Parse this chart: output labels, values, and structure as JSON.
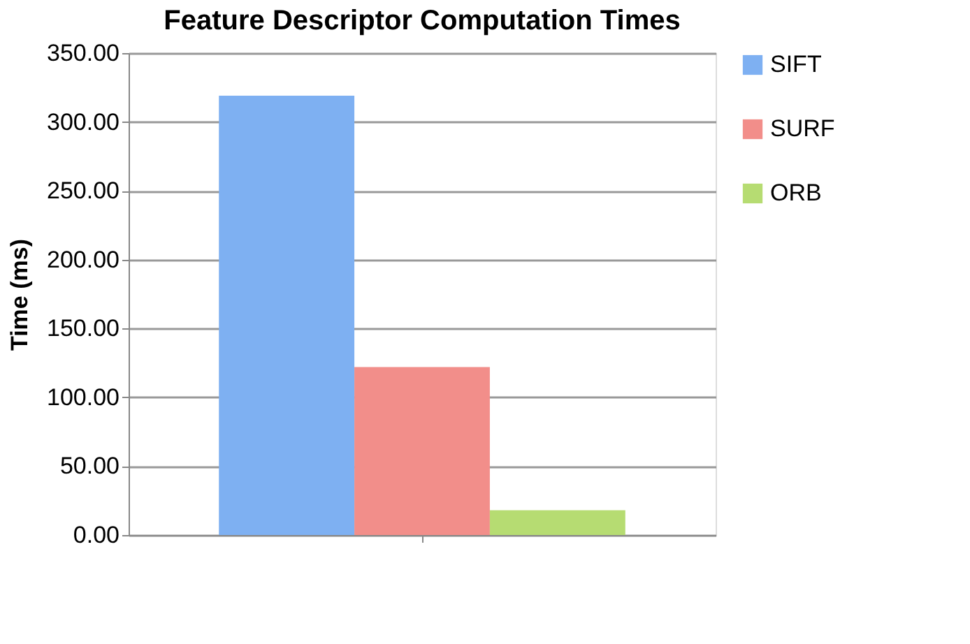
{
  "chart_data": {
    "type": "bar",
    "title": "Feature Descriptor Computation Times",
    "ylabel": "Time (ms)",
    "categories": [
      null
    ],
    "series": [
      {
        "name": "SIFT",
        "color": "#7eb0f2",
        "values": [
          319
        ]
      },
      {
        "name": "SURF",
        "color": "#f28e8a",
        "values": [
          122
        ]
      },
      {
        "name": "ORB",
        "color": "#b6dc72",
        "values": [
          18
        ]
      }
    ],
    "ylim": [
      0,
      350
    ],
    "yticks": [
      {
        "value": 0,
        "label": "0.00"
      },
      {
        "value": 50,
        "label": "50.00"
      },
      {
        "value": 100,
        "label": "100.00"
      },
      {
        "value": 150,
        "label": "150.00"
      },
      {
        "value": 200,
        "label": "200.00"
      },
      {
        "value": 250,
        "label": "250.00"
      },
      {
        "value": 300,
        "label": "300.00"
      },
      {
        "value": 350,
        "label": "350.00"
      }
    ],
    "grid": "y",
    "legend": "right"
  }
}
